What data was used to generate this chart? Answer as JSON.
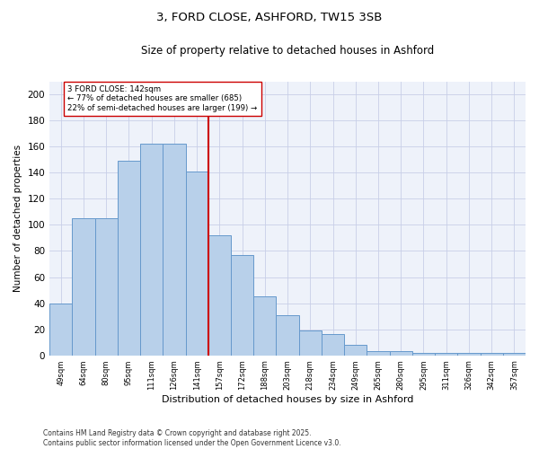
{
  "title": "3, FORD CLOSE, ASHFORD, TW15 3SB",
  "subtitle": "Size of property relative to detached houses in Ashford",
  "xlabel": "Distribution of detached houses by size in Ashford",
  "ylabel": "Number of detached properties",
  "bar_labels": [
    "49sqm",
    "64sqm",
    "80sqm",
    "95sqm",
    "111sqm",
    "126sqm",
    "141sqm",
    "157sqm",
    "172sqm",
    "188sqm",
    "203sqm",
    "218sqm",
    "234sqm",
    "249sqm",
    "265sqm",
    "280sqm",
    "295sqm",
    "311sqm",
    "326sqm",
    "342sqm",
    "357sqm"
  ],
  "bar_values": [
    40,
    105,
    105,
    149,
    162,
    162,
    141,
    92,
    77,
    45,
    31,
    19,
    16,
    8,
    3,
    3,
    2,
    2,
    2,
    2,
    2
  ],
  "bar_color": "#b8d0ea",
  "bar_edge_color": "#6699cc",
  "annotation_text": "3 FORD CLOSE: 142sqm\n← 77% of detached houses are smaller (685)\n22% of semi-detached houses are larger (199) →",
  "vline_color": "#cc0000",
  "annotation_box_color": "#cc0000",
  "ylim": [
    0,
    210
  ],
  "yticks": [
    0,
    20,
    40,
    60,
    80,
    100,
    120,
    140,
    160,
    180,
    200
  ],
  "footer": "Contains HM Land Registry data © Crown copyright and database right 2025.\nContains public sector information licensed under the Open Government Licence v3.0.",
  "bg_color": "#eef2fa",
  "grid_color": "#c8cfe8"
}
